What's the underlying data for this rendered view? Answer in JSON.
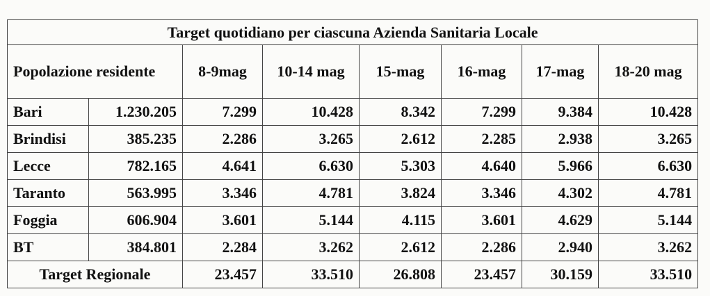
{
  "title": "Target quotidiano per ciascuna Azienda Sanitaria Locale",
  "header": {
    "population_label": "Popolazione residente",
    "columns": [
      "8-9mag",
      "10-14 mag",
      "15-mag",
      "16-mag",
      "17-mag",
      "18-20 mag"
    ]
  },
  "rows": [
    {
      "name": "Bari",
      "population": "1.230.205",
      "values": [
        "7.299",
        "10.428",
        "8.342",
        "7.299",
        "9.384",
        "10.428"
      ]
    },
    {
      "name": "Brindisi",
      "population": "385.235",
      "values": [
        "2.286",
        "3.265",
        "2.612",
        "2.285",
        "2.938",
        "3.265"
      ]
    },
    {
      "name": "Lecce",
      "population": "782.165",
      "values": [
        "4.641",
        "6.630",
        "5.303",
        "4.640",
        "5.966",
        "6.630"
      ]
    },
    {
      "name": "Taranto",
      "population": "563.995",
      "values": [
        "3.346",
        "4.781",
        "3.824",
        "3.346",
        "4.302",
        "4.781"
      ]
    },
    {
      "name": "Foggia",
      "population": "606.904",
      "values": [
        "3.601",
        "5.144",
        "4.115",
        "3.601",
        "4.629",
        "5.144"
      ]
    },
    {
      "name": "BT",
      "population": "384.801",
      "values": [
        "2.284",
        "3.262",
        "2.612",
        "2.286",
        "2.940",
        "3.262"
      ]
    }
  ],
  "total": {
    "label": "Target Regionale",
    "values": [
      "23.457",
      "33.510",
      "26.808",
      "23.457",
      "30.159",
      "33.510"
    ]
  }
}
